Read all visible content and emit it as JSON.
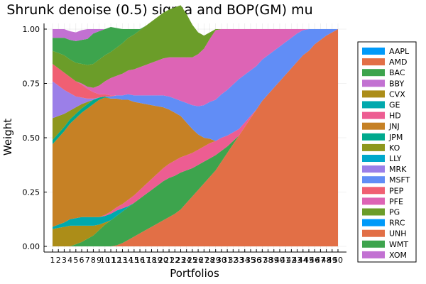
{
  "chart_data": {
    "type": "area",
    "stacked": true,
    "title": "Shrunk denoise (0.5) sigma and BOP(GM) mu",
    "xlabel": "Portfolios",
    "ylabel": "Weight",
    "ylim": [
      0,
      1
    ],
    "xlim": [
      1,
      50
    ],
    "yticks": [
      0.0,
      0.25,
      0.5,
      0.75,
      1.0
    ],
    "ytick_labels": [
      "0.00",
      "0.25",
      "0.50",
      "0.75",
      "1.00"
    ],
    "x": [
      1,
      2,
      3,
      4,
      5,
      6,
      7,
      8,
      9,
      10,
      11,
      12,
      13,
      14,
      15,
      16,
      17,
      18,
      19,
      20,
      21,
      22,
      23,
      24,
      25,
      26,
      27,
      28,
      29,
      30,
      31,
      32,
      33,
      34,
      35,
      36,
      37,
      38,
      39,
      40,
      41,
      42,
      43,
      44,
      45,
      46,
      47,
      48,
      49,
      50
    ],
    "grid": true,
    "legend_position": "right",
    "series": [
      {
        "name": "AAPL",
        "color": "#009af9",
        "values": [
          0,
          0,
          0,
          0,
          0,
          0,
          0,
          0,
          0,
          0,
          0,
          0,
          0,
          0,
          0,
          0,
          0,
          0,
          0,
          0,
          0,
          0,
          0,
          0,
          0,
          0,
          0,
          0,
          0,
          0,
          0,
          0,
          0,
          0,
          0,
          0,
          0,
          0,
          0,
          0,
          0,
          0,
          0,
          0,
          0,
          0,
          0,
          0,
          0,
          0
        ]
      },
      {
        "name": "AMD",
        "color": "#e26f46",
        "values": [
          0,
          0,
          0,
          0,
          0,
          0,
          0,
          0,
          0,
          0,
          0,
          0.005,
          0.015,
          0.03,
          0.045,
          0.06,
          0.075,
          0.09,
          0.105,
          0.12,
          0.135,
          0.15,
          0.17,
          0.2,
          0.23,
          0.26,
          0.29,
          0.32,
          0.35,
          0.39,
          0.43,
          0.47,
          0.51,
          0.55,
          0.59,
          0.63,
          0.67,
          0.7,
          0.73,
          0.76,
          0.79,
          0.82,
          0.85,
          0.88,
          0.9,
          0.93,
          0.95,
          0.97,
          0.985,
          1.0
        ]
      },
      {
        "name": "BAC",
        "color": "#3da44d",
        "values": [
          0,
          0,
          0,
          0,
          0.01,
          0.02,
          0.035,
          0.05,
          0.075,
          0.1,
          0.12,
          0.135,
          0.145,
          0.15,
          0.155,
          0.16,
          0.165,
          0.17,
          0.175,
          0.18,
          0.18,
          0.175,
          0.17,
          0.15,
          0.13,
          0.115,
          0.1,
          0.085,
          0.07,
          0.05,
          0.03,
          0.015,
          0,
          0,
          0,
          0,
          0,
          0,
          0,
          0,
          0,
          0,
          0,
          0,
          0,
          0,
          0,
          0,
          0,
          0
        ]
      },
      {
        "name": "BBY",
        "color": "#c271d2",
        "values": [
          0,
          0,
          0,
          0,
          0,
          0,
          0,
          0,
          0,
          0,
          0,
          0,
          0,
          0,
          0,
          0,
          0,
          0,
          0,
          0,
          0,
          0,
          0,
          0,
          0,
          0,
          0,
          0,
          0,
          0,
          0,
          0,
          0,
          0,
          0,
          0,
          0,
          0,
          0,
          0,
          0,
          0,
          0,
          0,
          0,
          0,
          0,
          0,
          0,
          0
        ]
      },
      {
        "name": "CVX",
        "color": "#ac8d18",
        "values": [
          0.08,
          0.085,
          0.09,
          0.095,
          0.085,
          0.075,
          0.06,
          0.045,
          0.025,
          0.01,
          0,
          0,
          0,
          0,
          0,
          0,
          0,
          0,
          0,
          0,
          0,
          0,
          0,
          0,
          0,
          0,
          0,
          0,
          0,
          0,
          0,
          0,
          0,
          0,
          0,
          0,
          0,
          0,
          0,
          0,
          0,
          0,
          0,
          0,
          0,
          0,
          0,
          0,
          0,
          0
        ]
      },
      {
        "name": "GE",
        "color": "#00a9ad",
        "values": [
          0.01,
          0.015,
          0.02,
          0.03,
          0.035,
          0.04,
          0.04,
          0.04,
          0.035,
          0.03,
          0.03,
          0.025,
          0.015,
          0.005,
          0,
          0,
          0,
          0,
          0,
          0,
          0,
          0,
          0,
          0,
          0,
          0,
          0,
          0,
          0,
          0,
          0,
          0,
          0,
          0,
          0,
          0,
          0,
          0,
          0,
          0,
          0,
          0,
          0,
          0,
          0,
          0,
          0,
          0,
          0,
          0
        ]
      },
      {
        "name": "HD",
        "color": "#ed5d92",
        "values": [
          0,
          0,
          0,
          0,
          0,
          0,
          0,
          0,
          0,
          0.005,
          0.01,
          0.015,
          0.02,
          0.03,
          0.035,
          0.04,
          0.045,
          0.05,
          0.055,
          0.06,
          0.065,
          0.07,
          0.07,
          0.07,
          0.07,
          0.07,
          0.07,
          0.07,
          0.065,
          0.06,
          0.05,
          0.04,
          0.03,
          0.02,
          0.01,
          0,
          0,
          0,
          0,
          0,
          0,
          0,
          0,
          0,
          0,
          0,
          0,
          0,
          0,
          0
        ]
      },
      {
        "name": "JNJ",
        "color": "#c68125",
        "values": [
          0.38,
          0.4,
          0.42,
          0.44,
          0.46,
          0.48,
          0.5,
          0.52,
          0.54,
          0.54,
          0.52,
          0.5,
          0.48,
          0.46,
          0.43,
          0.4,
          0.37,
          0.34,
          0.31,
          0.28,
          0.25,
          0.22,
          0.19,
          0.15,
          0.11,
          0.07,
          0.04,
          0.02,
          0,
          0,
          0,
          0,
          0,
          0,
          0,
          0,
          0,
          0,
          0,
          0,
          0,
          0,
          0,
          0,
          0,
          0,
          0,
          0,
          0,
          0
        ]
      },
      {
        "name": "JPM",
        "color": "#00a98d",
        "values": [
          0.02,
          0.02,
          0.02,
          0.02,
          0.02,
          0.02,
          0.02,
          0.02,
          0.01,
          0.005,
          0,
          0,
          0,
          0,
          0,
          0,
          0,
          0,
          0,
          0,
          0,
          0,
          0,
          0,
          0,
          0,
          0,
          0,
          0,
          0,
          0,
          0,
          0,
          0,
          0,
          0,
          0,
          0,
          0,
          0,
          0,
          0,
          0,
          0,
          0,
          0,
          0,
          0,
          0,
          0
        ]
      },
      {
        "name": "KO",
        "color": "#8e971d",
        "values": [
          0.1,
          0.08,
          0.06,
          0.04,
          0.03,
          0.02,
          0.01,
          0,
          0,
          0,
          0,
          0,
          0,
          0,
          0,
          0,
          0,
          0,
          0,
          0,
          0,
          0,
          0,
          0,
          0,
          0,
          0,
          0,
          0,
          0,
          0,
          0,
          0,
          0,
          0,
          0,
          0,
          0,
          0,
          0,
          0,
          0,
          0,
          0,
          0,
          0,
          0,
          0,
          0,
          0
        ]
      },
      {
        "name": "LLY",
        "color": "#00a8cb",
        "values": [
          0,
          0,
          0,
          0,
          0,
          0,
          0,
          0,
          0,
          0,
          0,
          0,
          0,
          0,
          0,
          0,
          0,
          0,
          0,
          0,
          0,
          0,
          0,
          0,
          0,
          0,
          0,
          0,
          0,
          0,
          0,
          0,
          0,
          0,
          0,
          0,
          0,
          0,
          0,
          0,
          0,
          0,
          0,
          0,
          0,
          0,
          0,
          0,
          0,
          0
        ]
      },
      {
        "name": "MRK",
        "color": "#9b7fe8",
        "values": [
          0.17,
          0.14,
          0.11,
          0.08,
          0.05,
          0.03,
          0.015,
          0.005,
          0,
          0,
          0,
          0,
          0,
          0,
          0,
          0,
          0,
          0,
          0,
          0,
          0,
          0,
          0,
          0,
          0,
          0,
          0,
          0,
          0,
          0,
          0,
          0,
          0,
          0,
          0,
          0,
          0,
          0,
          0,
          0,
          0,
          0,
          0,
          0,
          0,
          0,
          0,
          0,
          0,
          0
        ]
      },
      {
        "name": "MSFT",
        "color": "#618df6",
        "values": [
          0,
          0,
          0,
          0,
          0,
          0,
          0,
          0,
          0,
          0,
          0.01,
          0.015,
          0.02,
          0.025,
          0.03,
          0.035,
          0.04,
          0.045,
          0.05,
          0.055,
          0.06,
          0.065,
          0.07,
          0.09,
          0.11,
          0.13,
          0.15,
          0.17,
          0.19,
          0.2,
          0.21,
          0.22,
          0.23,
          0.22,
          0.21,
          0.2,
          0.19,
          0.18,
          0.17,
          0.16,
          0.15,
          0.14,
          0.13,
          0.115,
          0.1,
          0.07,
          0.05,
          0.03,
          0.015,
          0
        ]
      },
      {
        "name": "PEP",
        "color": "#f05f73",
        "values": [
          0.08,
          0.08,
          0.08,
          0.075,
          0.07,
          0.06,
          0.045,
          0.03,
          0.015,
          0.01,
          0.005,
          0,
          0,
          0,
          0,
          0,
          0,
          0,
          0,
          0,
          0,
          0,
          0,
          0,
          0,
          0,
          0,
          0,
          0,
          0,
          0,
          0,
          0,
          0,
          0,
          0,
          0,
          0,
          0,
          0,
          0,
          0,
          0,
          0,
          0,
          0,
          0,
          0,
          0,
          0
        ]
      },
      {
        "name": "PFE",
        "color": "#dd64b5",
        "values": [
          0,
          0,
          0,
          0,
          0,
          0.005,
          0.01,
          0.02,
          0.04,
          0.06,
          0.08,
          0.09,
          0.1,
          0.11,
          0.12,
          0.13,
          0.14,
          0.15,
          0.16,
          0.17,
          0.18,
          0.19,
          0.2,
          0.21,
          0.22,
          0.24,
          0.26,
          0.29,
          0.32,
          0.3,
          0.28,
          0.255,
          0.23,
          0.21,
          0.19,
          0.17,
          0.14,
          0.12,
          0.1,
          0.08,
          0.06,
          0.04,
          0.02,
          0.005,
          0,
          0,
          0,
          0,
          0,
          0
        ]
      },
      {
        "name": "PG",
        "color": "#6b9d29",
        "values": [
          0.06,
          0.07,
          0.08,
          0.08,
          0.085,
          0.09,
          0.1,
          0.11,
          0.12,
          0.12,
          0.12,
          0.13,
          0.14,
          0.15,
          0.16,
          0.17,
          0.18,
          0.19,
          0.2,
          0.21,
          0.22,
          0.23,
          0.24,
          0.2,
          0.15,
          0.1,
          0.06,
          0.03,
          0.005,
          0,
          0,
          0,
          0,
          0,
          0,
          0,
          0,
          0,
          0,
          0,
          0,
          0,
          0,
          0,
          0,
          0,
          0,
          0,
          0,
          0
        ]
      },
      {
        "name": "RRC",
        "color": "#009af9",
        "values": [
          0,
          0,
          0,
          0,
          0,
          0,
          0,
          0,
          0,
          0,
          0,
          0,
          0,
          0,
          0,
          0,
          0,
          0,
          0,
          0,
          0,
          0,
          0,
          0,
          0,
          0,
          0,
          0,
          0,
          0,
          0,
          0,
          0,
          0,
          0,
          0,
          0,
          0,
          0,
          0,
          0,
          0,
          0,
          0,
          0,
          0,
          0,
          0,
          0,
          0
        ]
      },
      {
        "name": "UNH",
        "color": "#e26f46",
        "values": [
          0,
          0,
          0,
          0,
          0,
          0,
          0,
          0,
          0,
          0,
          0,
          0,
          0,
          0,
          0,
          0,
          0,
          0,
          0,
          0,
          0,
          0,
          0,
          0,
          0,
          0,
          0,
          0,
          0,
          0,
          0,
          0,
          0,
          0,
          0,
          0,
          0,
          0,
          0,
          0,
          0,
          0,
          0,
          0,
          0,
          0,
          0,
          0,
          0,
          0
        ]
      },
      {
        "name": "WMT",
        "color": "#3da44d",
        "values": [
          0.06,
          0.07,
          0.08,
          0.09,
          0.1,
          0.11,
          0.12,
          0.14,
          0.13,
          0.12,
          0.115,
          0.09,
          0.065,
          0.04,
          0.025,
          0.005,
          0,
          0,
          0,
          0,
          0,
          0,
          0,
          0,
          0,
          0,
          0,
          0,
          0,
          0,
          0,
          0,
          0,
          0,
          0,
          0,
          0,
          0,
          0,
          0,
          0,
          0,
          0,
          0,
          0,
          0,
          0,
          0,
          0,
          0
        ]
      },
      {
        "name": "XOM",
        "color": "#c271d2",
        "values": [
          0.04,
          0.04,
          0.04,
          0.04,
          0.04,
          0.045,
          0.045,
          0.02,
          0.01,
          0,
          0,
          0,
          0,
          0,
          0,
          0,
          0,
          0,
          0,
          0,
          0,
          0,
          0,
          0,
          0,
          0,
          0,
          0,
          0,
          0,
          0,
          0,
          0,
          0,
          0,
          0,
          0,
          0,
          0,
          0,
          0,
          0,
          0,
          0,
          0,
          0,
          0,
          0,
          0,
          0
        ]
      }
    ]
  }
}
